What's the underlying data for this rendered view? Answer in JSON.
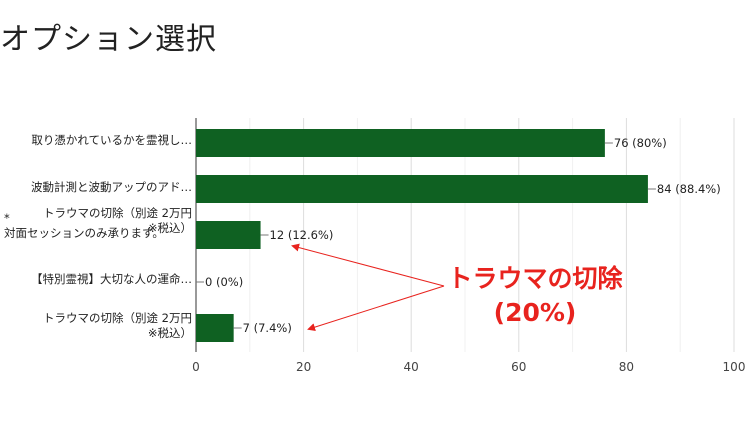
{
  "page_title": "オプション選択",
  "chart_data": {
    "type": "bar",
    "orientation": "horizontal",
    "categories": [
      "取り憑かれているかを霊視し…",
      "波動計測と波動アップのアド…",
      "トラウマの切除（別途 2万円\n※税込）",
      "【特別霊視】大切な人の運命…",
      "トラウマの切除（別途 2万円\n※税込）"
    ],
    "values": [
      76,
      84,
      12,
      0,
      7
    ],
    "data_labels": [
      "76 (80%)",
      "84 (88.4%)",
      "12 (12.6%)",
      "0 (0%)",
      "7 (7.4%)"
    ],
    "xlim": [
      0,
      100
    ],
    "xticks": [
      "0",
      "20",
      "40",
      "60",
      "80",
      "100"
    ],
    "grid": true,
    "bar_color": "#0f6122",
    "note": "*\n対面セッションのみ承ります。",
    "annotation": {
      "line1": "トラウマの切除",
      "line2": "(20%)",
      "color": "#e8231e"
    }
  }
}
